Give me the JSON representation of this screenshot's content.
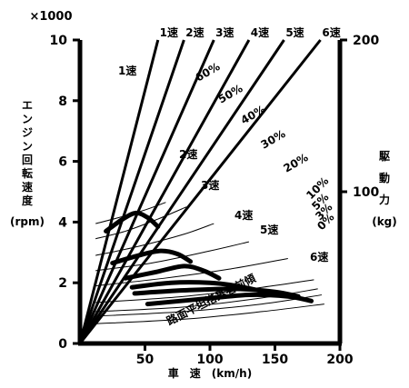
{
  "chart_data": {
    "type": "line",
    "xlabel": "車　速　(km/h)",
    "ylabel_left": [
      "エ",
      "ン",
      "ジ",
      "ン",
      "回",
      "転",
      "速",
      "度",
      "(rpm)"
    ],
    "ylabel_right": [
      "駆",
      "動",
      "力",
      "(kg)"
    ],
    "left_multiplier": "×1000",
    "x_ticks": [
      "50",
      "100",
      "150",
      "200"
    ],
    "y_left_ticks": [
      "0",
      "2",
      "4",
      "6",
      "8",
      "10"
    ],
    "y_right_ticks": [
      "100",
      "200"
    ],
    "xlim": [
      0,
      200
    ],
    "ylim_left": [
      0,
      10
    ],
    "ylim_right": [
      0,
      200
    ],
    "gear_lines": [
      {
        "name": "1速",
        "x_at_10000rpm": 60
      },
      {
        "name": "2速",
        "x_at_10000rpm": 80
      },
      {
        "name": "3速",
        "x_at_10000rpm": 103
      },
      {
        "name": "4速",
        "x_at_10000rpm": 130
      },
      {
        "name": "5速",
        "x_at_10000rpm": 157
      },
      {
        "name": "6速",
        "x_at_10000rpm": 185
      }
    ],
    "drive_force_curves": [
      {
        "name": "1速",
        "points": [
          [
            20,
            74
          ],
          [
            33,
            82
          ],
          [
            43,
            86
          ],
          [
            52,
            83
          ],
          [
            60,
            77
          ]
        ]
      },
      {
        "name": "2速",
        "points": [
          [
            25,
            53
          ],
          [
            45,
            58
          ],
          [
            62,
            61
          ],
          [
            75,
            59
          ],
          [
            85,
            54
          ]
        ]
      },
      {
        "name": "3速",
        "points": [
          [
            35,
            43
          ],
          [
            58,
            47
          ],
          [
            80,
            51
          ],
          [
            95,
            48
          ],
          [
            107,
            43
          ]
        ]
      },
      {
        "name": "4速",
        "points": [
          [
            40,
            37
          ],
          [
            70,
            40
          ],
          [
            100,
            40
          ],
          [
            120,
            38
          ],
          [
            143,
            34
          ]
        ]
      },
      {
        "name": "5速",
        "points": [
          [
            42,
            33
          ],
          [
            80,
            35
          ],
          [
            120,
            36
          ],
          [
            150,
            34
          ],
          [
            168,
            31
          ]
        ]
      },
      {
        "name": "6速",
        "points": [
          [
            52,
            26
          ],
          [
            90,
            29
          ],
          [
            130,
            32
          ],
          [
            160,
            31
          ],
          [
            178,
            28
          ]
        ]
      }
    ],
    "resistance_curves": [
      {
        "name": "60%",
        "points": [
          [
            12,
            79
          ],
          [
            30,
            83
          ],
          [
            50,
            88
          ],
          [
            66,
            93
          ]
        ]
      },
      {
        "name": "50%",
        "points": [
          [
            12,
            69
          ],
          [
            35,
            74
          ],
          [
            60,
            82
          ],
          [
            82,
            90
          ]
        ]
      },
      {
        "name": "40%",
        "points": [
          [
            12,
            58
          ],
          [
            45,
            64
          ],
          [
            80,
            72
          ],
          [
            103,
            79
          ]
        ]
      },
      {
        "name": "30%",
        "points": [
          [
            12,
            48
          ],
          [
            55,
            53
          ],
          [
            100,
            61
          ],
          [
            130,
            67
          ]
        ]
      },
      {
        "name": "20%",
        "points": [
          [
            12,
            38
          ],
          [
            65,
            43
          ],
          [
            115,
            49
          ],
          [
            160,
            56
          ]
        ]
      },
      {
        "name": "10%",
        "points": [
          [
            12,
            27
          ],
          [
            80,
            31
          ],
          [
            140,
            37
          ],
          [
            180,
            42
          ]
        ]
      },
      {
        "name": "5%",
        "points": [
          [
            12,
            21
          ],
          [
            80,
            24
          ],
          [
            140,
            30
          ],
          [
            183,
            36
          ]
        ]
      },
      {
        "name": "3%",
        "points": [
          [
            12,
            18
          ],
          [
            80,
            21
          ],
          [
            140,
            26
          ],
          [
            186,
            32
          ]
        ]
      },
      {
        "name": "0%",
        "points": [
          [
            12,
            13
          ],
          [
            80,
            16
          ],
          [
            140,
            21
          ],
          [
            188,
            26
          ]
        ]
      }
    ],
    "annotation": "路面平坦搭乗者前傾",
    "grid": false,
    "legend": "none"
  }
}
